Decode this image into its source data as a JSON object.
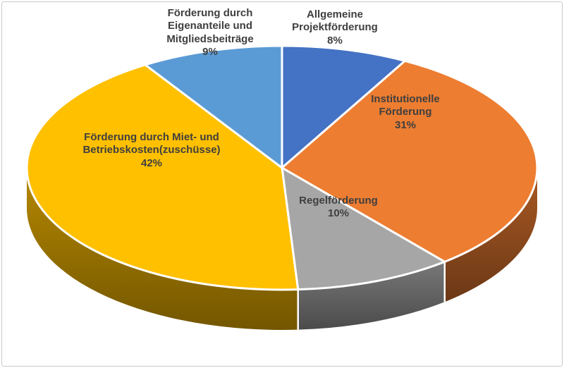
{
  "chart_data": {
    "type": "pie",
    "title": "",
    "effect": "3d",
    "legend": "none",
    "direction": "clockwise",
    "start_angle_deg": -90,
    "background": "#FFFFFF",
    "label_color": "#3F3F3F",
    "frame_border_color": "#C9C9C9",
    "slices": [
      {
        "label": "Allgemeine Projektförderung",
        "value": 8,
        "pct_label": "8%",
        "color": "#4472C4"
      },
      {
        "label": "Institutionelle Förderung",
        "value": 31,
        "pct_label": "31%",
        "color": "#ED7D31"
      },
      {
        "label": "Regelförderung",
        "value": 10,
        "pct_label": "10%",
        "color": "#A6A6A6"
      },
      {
        "label": "Förderung durch Miet- und Betriebskosten(zuschüsse)",
        "value": 42,
        "pct_label": "42%",
        "color": "#FFC000"
      },
      {
        "label": "Förderung durch Eigenanteile und Mitgliedsbeiträge",
        "value": 9,
        "pct_label": "9%",
        "color": "#5B9BD5"
      }
    ]
  }
}
